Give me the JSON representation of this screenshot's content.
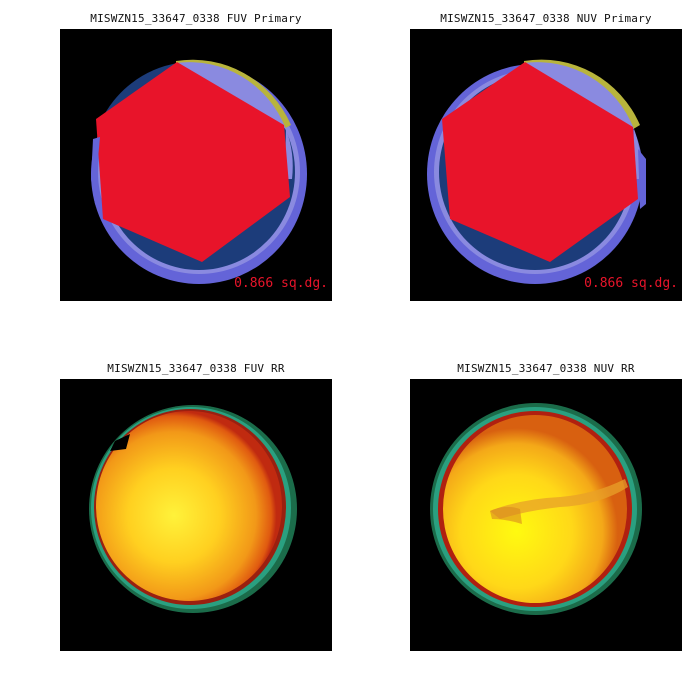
{
  "panels": {
    "fuv_primary": {
      "title": "MISWZN15_33647_0338 FUV Primary",
      "area_label": "0.866 sq.dg."
    },
    "nuv_primary": {
      "title": "MISWZN15_33647_0338 NUV Primary",
      "area_label": "0.866 sq.dg."
    },
    "fuv_rr": {
      "title": "MISWZN15_33647_0338 FUV RR"
    },
    "nuv_rr": {
      "title": "MISWZN15_33647_0338 NUV RR"
    }
  },
  "colors": {
    "background": "#000000",
    "coverage_light": "#8a8ae0",
    "coverage_dark": "#1c3c7a",
    "coverage_edge": "#5a5ad0",
    "overlap_yellow": "#b8b43c",
    "hexagon": "#e8142a",
    "area_label": "#e8142a"
  }
}
